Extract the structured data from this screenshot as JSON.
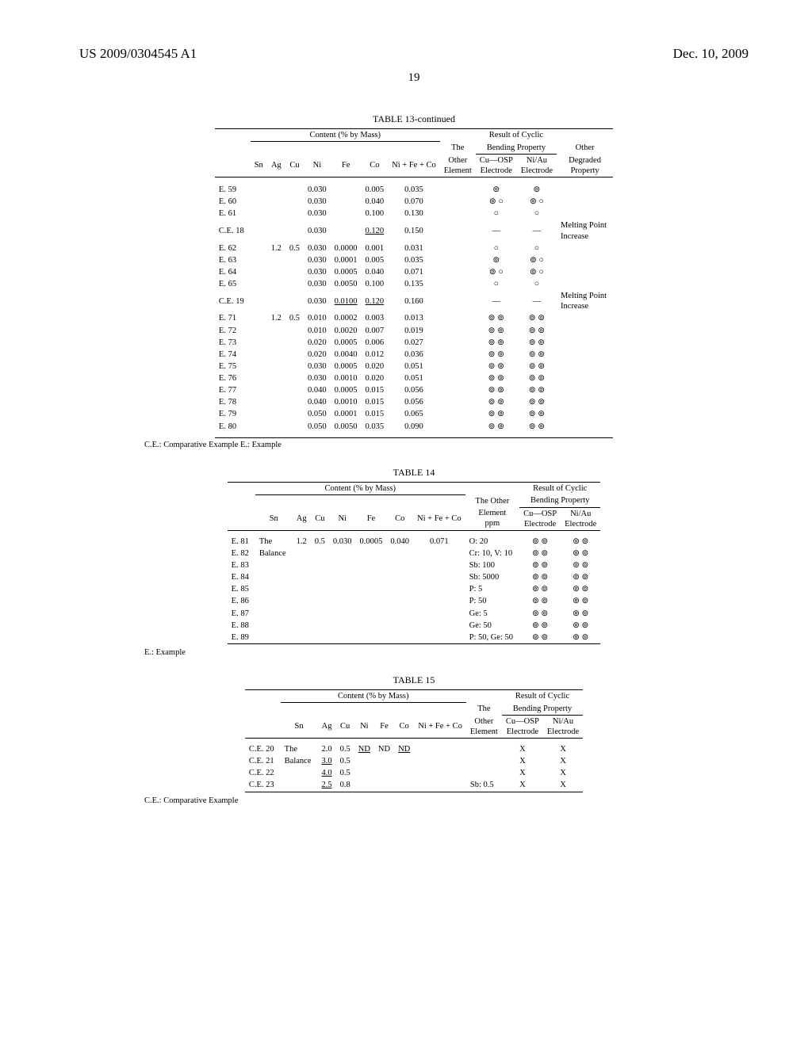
{
  "header": {
    "left": "US 2009/0304545 A1",
    "right": "Dec. 10, 2009",
    "page": "19"
  },
  "symbols": {
    "excellent": "⊚",
    "good": "○",
    "dash": "—"
  },
  "table13": {
    "caption": "TABLE 13-continued",
    "h": {
      "content": "Content (% by Mass)",
      "result": "Result of Cyclic",
      "the": "The",
      "bend": "Bending Property",
      "other_h": "Other",
      "sn": "Sn",
      "ag": "Ag",
      "cu": "Cu",
      "ni": "Ni",
      "fe": "Fe",
      "co": "Co",
      "sum": "Ni + Fe + Co",
      "otherEl": "Other\nElement",
      "cuosp": "Cu—OSP\nElectrode",
      "niau": "Ni/Au\nElectrode",
      "degraded": "Degraded\nProperty"
    },
    "rows": [
      {
        "id": "E. 59",
        "ag": "",
        "cu": "",
        "ni": "0.030",
        "fe": "",
        "co": "0.005",
        "sum": "0.035",
        "cu_r": "⊚",
        "ni_r": "⊚",
        "deg": ""
      },
      {
        "id": "E. 60",
        "ag": "",
        "cu": "",
        "ni": "0.030",
        "fe": "",
        "co": "0.040",
        "sum": "0.070",
        "cu_r": "⊚ ○",
        "ni_r": "⊚ ○",
        "deg": ""
      },
      {
        "id": "E. 61",
        "ag": "",
        "cu": "",
        "ni": "0.030",
        "fe": "",
        "co": "0.100",
        "sum": "0.130",
        "cu_r": "○",
        "ni_r": "○",
        "deg": ""
      },
      {
        "id": "C.E. 18",
        "ag": "",
        "cu": "",
        "ni": "0.030",
        "fe": "",
        "co": "0.120",
        "co_ul": true,
        "sum": "0.150",
        "cu_r": "—",
        "ni_r": "—",
        "deg": "Melting Point\nIncrease"
      },
      {
        "id": "E. 62",
        "ag": "1.2",
        "cu": "0.5",
        "ni": "0.030",
        "fe": "0.0000",
        "co": "0.001",
        "sum": "0.031",
        "cu_r": "○",
        "ni_r": "○",
        "deg": ""
      },
      {
        "id": "E. 63",
        "ag": "",
        "cu": "",
        "ni": "0.030",
        "fe": "0.0001",
        "co": "0.005",
        "sum": "0.035",
        "cu_r": "⊚",
        "ni_r": "⊚ ○",
        "deg": ""
      },
      {
        "id": "E. 64",
        "ag": "",
        "cu": "",
        "ni": "0.030",
        "fe": "0.0005",
        "co": "0.040",
        "sum": "0.071",
        "cu_r": "⊚ ○",
        "ni_r": "⊚ ○",
        "deg": ""
      },
      {
        "id": "E. 65",
        "ag": "",
        "cu": "",
        "ni": "0.030",
        "fe": "0.0050",
        "co": "0.100",
        "sum": "0.135",
        "cu_r": "○",
        "ni_r": "○",
        "deg": ""
      },
      {
        "id": "C.E. 19",
        "ag": "",
        "cu": "",
        "ni": "0.030",
        "fe": "0.0100",
        "fe_ul": true,
        "co": "0.120",
        "co_ul": true,
        "sum": "0.160",
        "cu_r": "—",
        "ni_r": "—",
        "deg": "Melting Point\nIncrease"
      },
      {
        "id": "E. 71",
        "ag": "1.2",
        "cu": "0.5",
        "ni": "0.010",
        "fe": "0.0002",
        "co": "0.003",
        "sum": "0.013",
        "cu_r": "⊚ ⊚",
        "ni_r": "⊚ ⊚",
        "deg": ""
      },
      {
        "id": "E. 72",
        "ag": "",
        "cu": "",
        "ni": "0.010",
        "fe": "0.0020",
        "co": "0.007",
        "sum": "0.019",
        "cu_r": "⊚ ⊚",
        "ni_r": "⊚ ⊚",
        "deg": ""
      },
      {
        "id": "E. 73",
        "ag": "",
        "cu": "",
        "ni": "0.020",
        "fe": "0.0005",
        "co": "0.006",
        "sum": "0.027",
        "cu_r": "⊚ ⊚",
        "ni_r": "⊚ ⊚",
        "deg": ""
      },
      {
        "id": "E. 74",
        "ag": "",
        "cu": "",
        "ni": "0.020",
        "fe": "0.0040",
        "co": "0.012",
        "sum": "0.036",
        "cu_r": "⊚ ⊚",
        "ni_r": "⊚ ⊚",
        "deg": ""
      },
      {
        "id": "E. 75",
        "ag": "",
        "cu": "",
        "ni": "0.030",
        "fe": "0.0005",
        "co": "0.020",
        "sum": "0.051",
        "cu_r": "⊚ ⊚",
        "ni_r": "⊚ ⊚",
        "deg": ""
      },
      {
        "id": "E. 76",
        "ag": "",
        "cu": "",
        "ni": "0.030",
        "fe": "0.0010",
        "co": "0.020",
        "sum": "0.051",
        "cu_r": "⊚ ⊚",
        "ni_r": "⊚ ⊚",
        "deg": ""
      },
      {
        "id": "E. 77",
        "ag": "",
        "cu": "",
        "ni": "0.040",
        "fe": "0.0005",
        "co": "0.015",
        "sum": "0.056",
        "cu_r": "⊚ ⊚",
        "ni_r": "⊚ ⊚",
        "deg": ""
      },
      {
        "id": "E. 78",
        "ag": "",
        "cu": "",
        "ni": "0.040",
        "fe": "0.0010",
        "co": "0.015",
        "sum": "0.056",
        "cu_r": "⊚ ⊚",
        "ni_r": "⊚ ⊚",
        "deg": ""
      },
      {
        "id": "E. 79",
        "ag": "",
        "cu": "",
        "ni": "0.050",
        "fe": "0.0001",
        "co": "0.015",
        "sum": "0.065",
        "cu_r": "⊚ ⊚",
        "ni_r": "⊚ ⊚",
        "deg": ""
      },
      {
        "id": "E. 80",
        "ag": "",
        "cu": "",
        "ni": "0.050",
        "fe": "0.0050",
        "co": "0.035",
        "sum": "0.090",
        "cu_r": "⊚ ⊚",
        "ni_r": "⊚ ⊚",
        "deg": ""
      }
    ],
    "footnote": "C.E.: Comparative Example\nE.: Example"
  },
  "table14": {
    "caption": "TABLE 14",
    "h": {
      "content": "Content (% by Mass)",
      "result": "Result of Cyclic",
      "theother": "The Other",
      "bend": "Bending Property",
      "sn": "Sn",
      "ag": "Ag",
      "cu": "Cu",
      "ni": "Ni",
      "fe": "Fe",
      "co": "Co",
      "sum": "Ni + Fe + Co",
      "elppm": "Element\nppm",
      "cuosp": "Cu—OSP\nElectrode",
      "niau": "Ni/Au\nElectrode"
    },
    "common": {
      "sn": "The\nBalance",
      "ag": "1.2",
      "cu": "0.5",
      "ni": "0.030",
      "fe": "0.0005",
      "co": "0.040",
      "sum": "0.071"
    },
    "rows": [
      {
        "id": "E. 81",
        "el": "O: 20",
        "cu_r": "⊚ ⊚",
        "ni_r": "⊚ ⊚"
      },
      {
        "id": "E. 82",
        "el": "Cr: 10, V: 10",
        "cu_r": "⊚ ⊚",
        "ni_r": "⊚ ⊚"
      },
      {
        "id": "E. 83",
        "el": "Sb: 100",
        "cu_r": "⊚ ⊚",
        "ni_r": "⊚ ⊚"
      },
      {
        "id": "E. 84",
        "el": "Sb: 5000",
        "cu_r": "⊚ ⊚",
        "ni_r": "⊚ ⊚"
      },
      {
        "id": "E. 85",
        "el": "P: 5",
        "cu_r": "⊚ ⊚",
        "ni_r": "⊚ ⊚"
      },
      {
        "id": "E. 86",
        "el": "P: 50",
        "cu_r": "⊚ ⊚",
        "ni_r": "⊚ ⊚"
      },
      {
        "id": "E. 87",
        "el": "Ge: 5",
        "cu_r": "⊚ ⊚",
        "ni_r": "⊚ ⊚"
      },
      {
        "id": "E. 88",
        "el": "Ge: 50",
        "cu_r": "⊚ ⊚",
        "ni_r": "⊚ ⊚"
      },
      {
        "id": "E. 89",
        "el": "P: 50, Ge: 50",
        "cu_r": "⊚ ⊚",
        "ni_r": "⊚ ⊚"
      }
    ],
    "footnote": "E.: Example"
  },
  "table15": {
    "caption": "TABLE 15",
    "h": {
      "content": "Content (% by Mass)",
      "result": "Result of Cyclic",
      "the": "The",
      "bend": "Bending Property",
      "sn": "Sn",
      "ag": "Ag",
      "cu": "Cu",
      "ni": "Ni",
      "fe": "Fe",
      "co": "Co",
      "sum": "Ni + Fe + Co",
      "otherEl": "Other\nElement",
      "cuosp": "Cu—OSP\nElectrode",
      "niau": "Ni/Au\nElectrode"
    },
    "rows": [
      {
        "id": "C.E. 20",
        "sn": "The",
        "ag": "2.0",
        "cu": "0.5",
        "ni": "ND",
        "ni_ul": true,
        "fe": "ND",
        "co": "ND",
        "co_ul": true,
        "el": "",
        "cu_r": "X",
        "ni_r": "X"
      },
      {
        "id": "C.E. 21",
        "sn": "Balance",
        "ag": "3.0",
        "ag_ul": true,
        "cu": "0.5",
        "ni": "",
        "fe": "",
        "co": "",
        "el": "",
        "cu_r": "X",
        "ni_r": "X"
      },
      {
        "id": "C.E. 22",
        "sn": "",
        "ag": "4.0",
        "ag_ul": true,
        "cu": "0.5",
        "ni": "",
        "fe": "",
        "co": "",
        "el": "",
        "cu_r": "X",
        "ni_r": "X"
      },
      {
        "id": "C.E. 23",
        "sn": "",
        "ag": "2.5",
        "ag_ul": true,
        "cu": "0.8",
        "ni": "",
        "fe": "",
        "co": "",
        "el": "Sb: 0.5",
        "cu_r": "X",
        "ni_r": "X"
      }
    ],
    "footnote": "C.E.: Comparative Example"
  }
}
